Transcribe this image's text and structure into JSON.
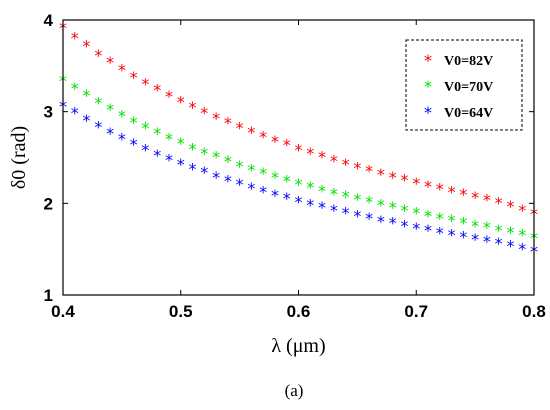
{
  "chart_data": {
    "type": "scatter",
    "title": "",
    "xlabel": "λ (μm)",
    "ylabel": "δ0 (rad)",
    "xlim": [
      0.4,
      0.8
    ],
    "ylim": [
      1,
      4
    ],
    "xticks": [
      "0.4",
      "0.5",
      "0.6",
      "0.7",
      "0.8"
    ],
    "yticks": [
      "1",
      "2",
      "3",
      "4"
    ],
    "grid": false,
    "legend_position": "top-right",
    "marker": "*",
    "caption": "(a)",
    "x": [
      0.4,
      0.41,
      0.42,
      0.43,
      0.44,
      0.45,
      0.46,
      0.47,
      0.48,
      0.49,
      0.5,
      0.51,
      0.52,
      0.53,
      0.54,
      0.55,
      0.56,
      0.57,
      0.58,
      0.59,
      0.6,
      0.61,
      0.62,
      0.63,
      0.64,
      0.65,
      0.66,
      0.67,
      0.68,
      0.69,
      0.7,
      0.71,
      0.72,
      0.73,
      0.74,
      0.75,
      0.76,
      0.77,
      0.78,
      0.79,
      0.8
    ],
    "series": [
      {
        "name": "V0=82V",
        "color": "#ff0000",
        "values": [
          3.92,
          3.81,
          3.72,
          3.62,
          3.54,
          3.46,
          3.38,
          3.31,
          3.24,
          3.17,
          3.11,
          3.05,
          2.99,
          2.93,
          2.88,
          2.83,
          2.78,
          2.73,
          2.68,
          2.64,
          2.59,
          2.55,
          2.51,
          2.47,
          2.43,
          2.39,
          2.36,
          2.32,
          2.29,
          2.26,
          2.22,
          2.19,
          2.16,
          2.13,
          2.1,
          2.07,
          2.04,
          2.01,
          1.97,
          1.93,
          1.89
        ]
      },
      {
        "name": "V0=70V",
        "color": "#00e000",
        "values": [
          3.34,
          3.26,
          3.18,
          3.1,
          3.03,
          2.96,
          2.89,
          2.83,
          2.77,
          2.71,
          2.66,
          2.6,
          2.55,
          2.51,
          2.46,
          2.41,
          2.37,
          2.33,
          2.29,
          2.25,
          2.21,
          2.18,
          2.14,
          2.11,
          2.08,
          2.05,
          2.02,
          1.99,
          1.96,
          1.93,
          1.9,
          1.87,
          1.84,
          1.82,
          1.79,
          1.76,
          1.74,
          1.71,
          1.69,
          1.66,
          1.63
        ]
      },
      {
        "name": "V0=64V",
        "color": "#0000ff",
        "values": [
          3.06,
          2.99,
          2.91,
          2.84,
          2.77,
          2.71,
          2.65,
          2.59,
          2.53,
          2.48,
          2.43,
          2.38,
          2.34,
          2.29,
          2.25,
          2.21,
          2.17,
          2.13,
          2.09,
          2.06,
          2.02,
          1.99,
          1.96,
          1.93,
          1.9,
          1.87,
          1.84,
          1.81,
          1.79,
          1.76,
          1.73,
          1.71,
          1.68,
          1.66,
          1.64,
          1.61,
          1.59,
          1.57,
          1.54,
          1.51,
          1.48
        ]
      }
    ]
  }
}
